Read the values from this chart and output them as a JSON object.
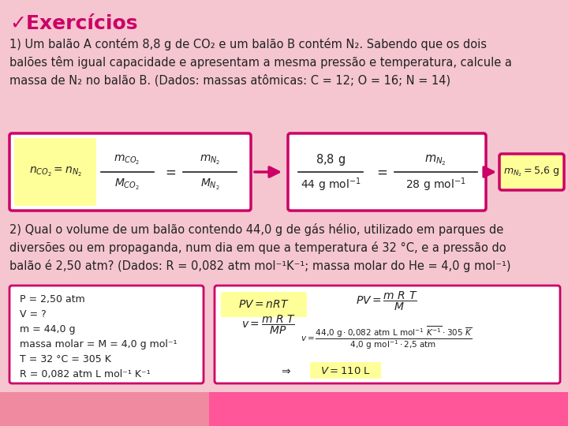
{
  "bg_color": "#f5c6d0",
  "title": "✓Exercícios",
  "title_color": "#cc0066",
  "title_fontsize": 18,
  "text_color": "#222222",
  "body_fontsize": 10.5,
  "para1": "1) Um balão A contém 8,8 g de CO₂ e um balão B contém N₂. Sabendo que os dois\nbalões têm igual capacidade e apresentam a mesma pressão e temperatura, calcule a\nmassa de N₂ no balão B. (Dados: massas atômicas: C = 12; O = 16; N = 14)",
  "para2": "2) Qual o volume de um balão contendo 44,0 g de gás hélio, utilizado em parques de\ndiversões ou em propaganda, num dia em que a temperatura é 32 °C, e a pressão do\nbalão é 2,50 atm? (Dados: R = 0,082 atm mol⁻¹K⁻¹; massa molar do He = 4,0 g mol⁻¹)",
  "box_border_color": "#cc0066",
  "box_fill": "#ffffff",
  "highlight_fill": "#ffff99",
  "arrow_color": "#cc0066",
  "footer_left_color": "#f08aa0",
  "footer_right_color": "#ff5599",
  "given_text": "P = 2,50 atm\nV = ?\nm = 44,0 g\nmassa molar = M = 4,0 g mol⁻¹\nT = 32 °C = 305 K\nR = 0,082 atm L mol⁻¹ K⁻¹"
}
